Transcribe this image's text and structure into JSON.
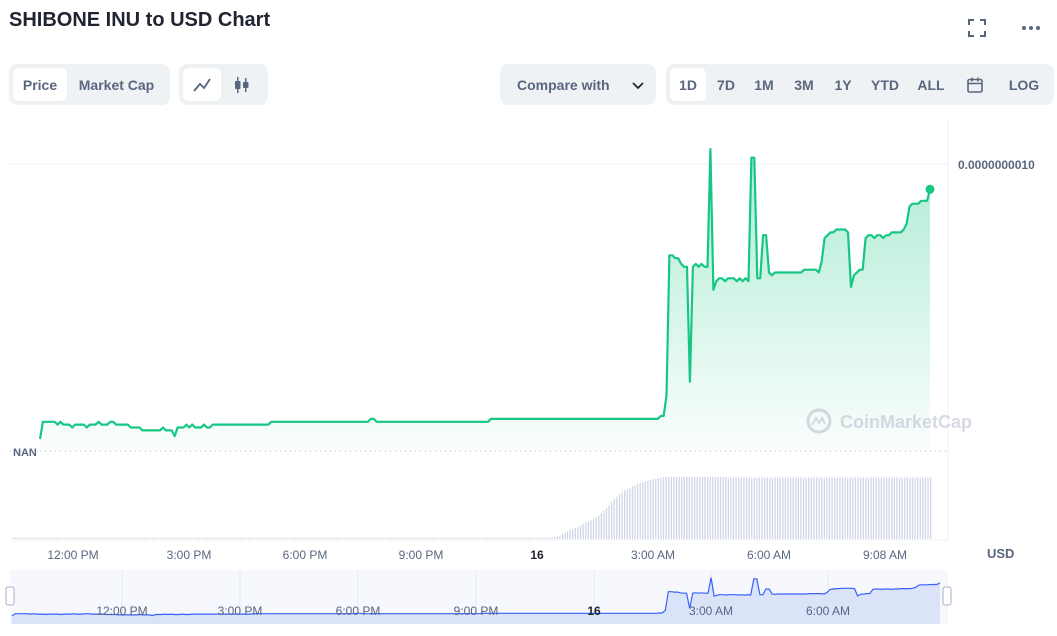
{
  "title": "SHIBONE INU to USD Chart",
  "top_icons": [
    "fullscreen-icon",
    "more-icon"
  ],
  "view_toggle": {
    "items": [
      "Price",
      "Market Cap"
    ],
    "active": "Price"
  },
  "chart_type_toggle": {
    "items": [
      "line-chart-icon",
      "candlestick-icon"
    ],
    "active": "line-chart-icon"
  },
  "compare": {
    "label": "Compare with"
  },
  "ranges": {
    "items": [
      "1D",
      "7D",
      "1M",
      "3M",
      "1Y",
      "YTD",
      "ALL"
    ],
    "active": "1D",
    "calendar_icon": "calendar-icon",
    "log_label": "LOG"
  },
  "watermark": "CoinMarketCap",
  "colors": {
    "line": "#16c784",
    "volume": "#cfd6e4",
    "navigator_line": "#3861fb",
    "navigator_fill": "#dde4f8"
  },
  "chart_data": {
    "type": "area",
    "y_tick_labels": [
      "0.0000000010"
    ],
    "nan_label": "NAN",
    "x_tick_labels": [
      "12:00 PM",
      "3:00 PM",
      "6:00 PM",
      "9:00 PM",
      "16",
      "3:00 AM",
      "6:00 AM",
      "9:08 AM"
    ],
    "navigator_tick_labels": [
      "12:00 PM",
      "3:00 PM",
      "6:00 PM",
      "9:00 PM",
      "16",
      "3:00 AM",
      "6:00 AM"
    ],
    "currency_label": "USD",
    "ylim": [
      0,
      1e-09
    ],
    "series": [
      {
        "values": [
          0.0,
          6e-11,
          6e-11,
          6e-11,
          6e-11,
          6e-11,
          5e-11,
          6e-11,
          5e-11,
          5e-11,
          5e-11,
          4e-11,
          5e-11,
          5e-11,
          5e-11,
          5e-11,
          4e-11,
          5e-11,
          5e-11,
          5e-11,
          6e-11,
          5e-11,
          5e-11,
          5e-11,
          6e-11,
          6e-11,
          5e-11,
          5e-11,
          5e-11,
          5e-11,
          5e-11,
          4e-11,
          4e-11,
          4e-11,
          4e-11,
          3e-11,
          3e-11,
          3e-11,
          3e-11,
          3e-11,
          3e-11,
          3e-11,
          4e-11,
          3e-11,
          3e-11,
          3e-11,
          1e-11,
          4e-11,
          4e-11,
          4e-11,
          5e-11,
          4e-11,
          5e-11,
          4e-11,
          4e-11,
          4e-11,
          5e-11,
          4e-11,
          4e-11,
          5e-11,
          5e-11,
          5e-11,
          5e-11,
          5e-11,
          5e-11,
          5e-11,
          5e-11,
          5e-11,
          5e-11,
          5e-11,
          5e-11,
          5e-11,
          5e-11,
          5e-11,
          5e-11,
          5e-11,
          5e-11,
          5e-11,
          5e-11,
          6e-11,
          6e-11,
          6e-11,
          6e-11,
          6e-11,
          6e-11,
          6e-11,
          6e-11,
          6e-11,
          6e-11,
          6e-11,
          6e-11,
          6e-11,
          6e-11,
          6e-11,
          6e-11,
          6e-11,
          6e-11,
          6e-11,
          6e-11,
          6e-11,
          6e-11,
          6e-11,
          6e-11,
          6e-11,
          6e-11,
          6e-11,
          6e-11,
          6e-11,
          6e-11,
          6e-11,
          6e-11,
          6e-11,
          6e-11,
          7e-11,
          7e-11,
          6e-11,
          6e-11,
          6e-11,
          6e-11,
          6e-11,
          6e-11,
          6e-11,
          6e-11,
          6e-11,
          6e-11,
          6e-11,
          6e-11,
          6e-11,
          6e-11,
          6e-11,
          6e-11,
          6e-11,
          6e-11,
          6e-11,
          6e-11,
          6e-11,
          6e-11,
          6e-11,
          6e-11,
          6e-11,
          6e-11,
          6e-11,
          6e-11,
          6e-11,
          6e-11,
          6e-11,
          6e-11,
          6e-11,
          6e-11,
          6e-11,
          6e-11,
          6e-11,
          6e-11,
          6e-11,
          7e-11,
          7e-11,
          7e-11,
          7e-11,
          7e-11,
          7e-11,
          7e-11,
          7e-11,
          7e-11,
          7e-11,
          7e-11,
          7e-11,
          7e-11,
          7e-11,
          7e-11,
          7e-11,
          7e-11,
          7e-11,
          7e-11,
          7e-11,
          7e-11,
          7e-11,
          7e-11,
          7e-11,
          7e-11,
          7e-11,
          7e-11,
          7e-11,
          7e-11,
          7e-11,
          7e-11,
          7e-11,
          7e-11,
          7e-11,
          7e-11,
          7e-11,
          7e-11,
          7e-11,
          7e-11,
          7e-11,
          7e-11,
          7e-11,
          7e-11,
          7e-11,
          7e-11,
          7e-11,
          7e-11,
          7e-11,
          7e-11,
          7e-11,
          7e-11,
          7e-11,
          7e-11,
          7e-11,
          7e-11,
          7e-11,
          7e-11,
          7e-11,
          8e-11,
          8e-11,
          1.5e-10,
          6.4e-10,
          6.4e-10,
          6.3e-10,
          6.3e-10,
          6.1e-10,
          6e-10,
          6e-10,
          2e-10,
          6e-10,
          6.1e-10,
          6e-10,
          6.1e-10,
          6e-10,
          6e-10,
          1.01e-09,
          5.2e-10,
          5.5e-10,
          5.6e-10,
          5.6e-10,
          5.5e-10,
          5.6e-10,
          5.6e-10,
          5.6e-10,
          5.5e-10,
          5.6e-10,
          5.5e-10,
          5.6e-10,
          5.5e-10,
          9.8e-10,
          9.8e-10,
          5.6e-10,
          5.6e-10,
          7.1e-10,
          7.1e-10,
          5.8e-10,
          5.7e-10,
          5.8e-10,
          5.8e-10,
          5.8e-10,
          5.8e-10,
          5.8e-10,
          5.8e-10,
          5.8e-10,
          5.8e-10,
          5.8e-10,
          5.8e-10,
          5.9e-10,
          5.9e-10,
          5.9e-10,
          5.9e-10,
          5.9e-10,
          5.8e-10,
          6.2e-10,
          7e-10,
          7.1e-10,
          7.2e-10,
          7.2e-10,
          7.3e-10,
          7.3e-10,
          7.3e-10,
          7.3e-10,
          7.2e-10,
          5.3e-10,
          5.7e-10,
          5.8e-10,
          5.9e-10,
          5.9e-10,
          7e-10,
          7.1e-10,
          7.1e-10,
          7e-10,
          7.1e-10,
          7.1e-10,
          7e-10,
          7.1e-10,
          7.1e-10,
          7.2e-10,
          7.2e-10,
          7.2e-10,
          7.2e-10,
          7.3e-10,
          7.5e-10,
          8.1e-10,
          8.2e-10,
          8.2e-10,
          8.2e-10,
          8.3e-10,
          8.3e-10,
          8.3e-10,
          8.7e-10
        ]
      }
    ],
    "volume": [
      1,
      1,
      1,
      1,
      1,
      1,
      1,
      1,
      1,
      1,
      1,
      1,
      1,
      1,
      1,
      1,
      1,
      1,
      1,
      1,
      1,
      1,
      1,
      1,
      1,
      1,
      1,
      1,
      1,
      1,
      1,
      1,
      1,
      1,
      1,
      1,
      1,
      1,
      1,
      1,
      1,
      1,
      1,
      1,
      1,
      1,
      1,
      1,
      1,
      1,
      1,
      1,
      1,
      1,
      1,
      1,
      1,
      1,
      1,
      1,
      1,
      1,
      1,
      1,
      1,
      1,
      1,
      1,
      1,
      1,
      1,
      1,
      1,
      1,
      1,
      1,
      1,
      1,
      1,
      1,
      1,
      1,
      1,
      1,
      1,
      1,
      1,
      1,
      1,
      1,
      1,
      1,
      1,
      1,
      1,
      1,
      1,
      1,
      1,
      1,
      1,
      1,
      1,
      1,
      1,
      1,
      1,
      1,
      1,
      1,
      1,
      1,
      1,
      1,
      1,
      1,
      1,
      1,
      1,
      1,
      1,
      1,
      1,
      1,
      1,
      1,
      1,
      1,
      1,
      1,
      1,
      1,
      1,
      1,
      1,
      1,
      1,
      1,
      1,
      1,
      1,
      1,
      1,
      1,
      1,
      1,
      1,
      1,
      1,
      1,
      1,
      1,
      1,
      1,
      1,
      1,
      1,
      1,
      1,
      1,
      1,
      1,
      1,
      1,
      1,
      1,
      1,
      1,
      1,
      1,
      1,
      1,
      1,
      1,
      1,
      1,
      1,
      1,
      1,
      1,
      1,
      1,
      1,
      1,
      1,
      1,
      1,
      1,
      1,
      1,
      1,
      1,
      1,
      1,
      1,
      1,
      1,
      1,
      1,
      1,
      1,
      1,
      1,
      1,
      1,
      1,
      1,
      1,
      2,
      3,
      4,
      6,
      8,
      10,
      12,
      14,
      16,
      18,
      20,
      22,
      24,
      26,
      28,
      30,
      32,
      35,
      38,
      42,
      46,
      50,
      55,
      60,
      64,
      68,
      72,
      75,
      78,
      80,
      82,
      85,
      87,
      89,
      90,
      92,
      93,
      94,
      95,
      96,
      97,
      98,
      99,
      100,
      100,
      100,
      100,
      100,
      100,
      100,
      100,
      100,
      100,
      100,
      100,
      100,
      100,
      100,
      100,
      100,
      100,
      100,
      100,
      100,
      100,
      100,
      100,
      100,
      99,
      99,
      99,
      99,
      99,
      99,
      99,
      99,
      99,
      99,
      99,
      99,
      99,
      99,
      99,
      99,
      99,
      99,
      99,
      99,
      99,
      99,
      99,
      99,
      99,
      99,
      99,
      99,
      99,
      99,
      99,
      99,
      99,
      99,
      99,
      99,
      99,
      99,
      99,
      99,
      99,
      99,
      99,
      99,
      99,
      99,
      99,
      99,
      99,
      99,
      99,
      99,
      99,
      99,
      99,
      99,
      99,
      99,
      99,
      99,
      99,
      99,
      99,
      99,
      99,
      99,
      99,
      99,
      99,
      99,
      99,
      99,
      99,
      99,
      99,
      99,
      99,
      99,
      99
    ]
  }
}
